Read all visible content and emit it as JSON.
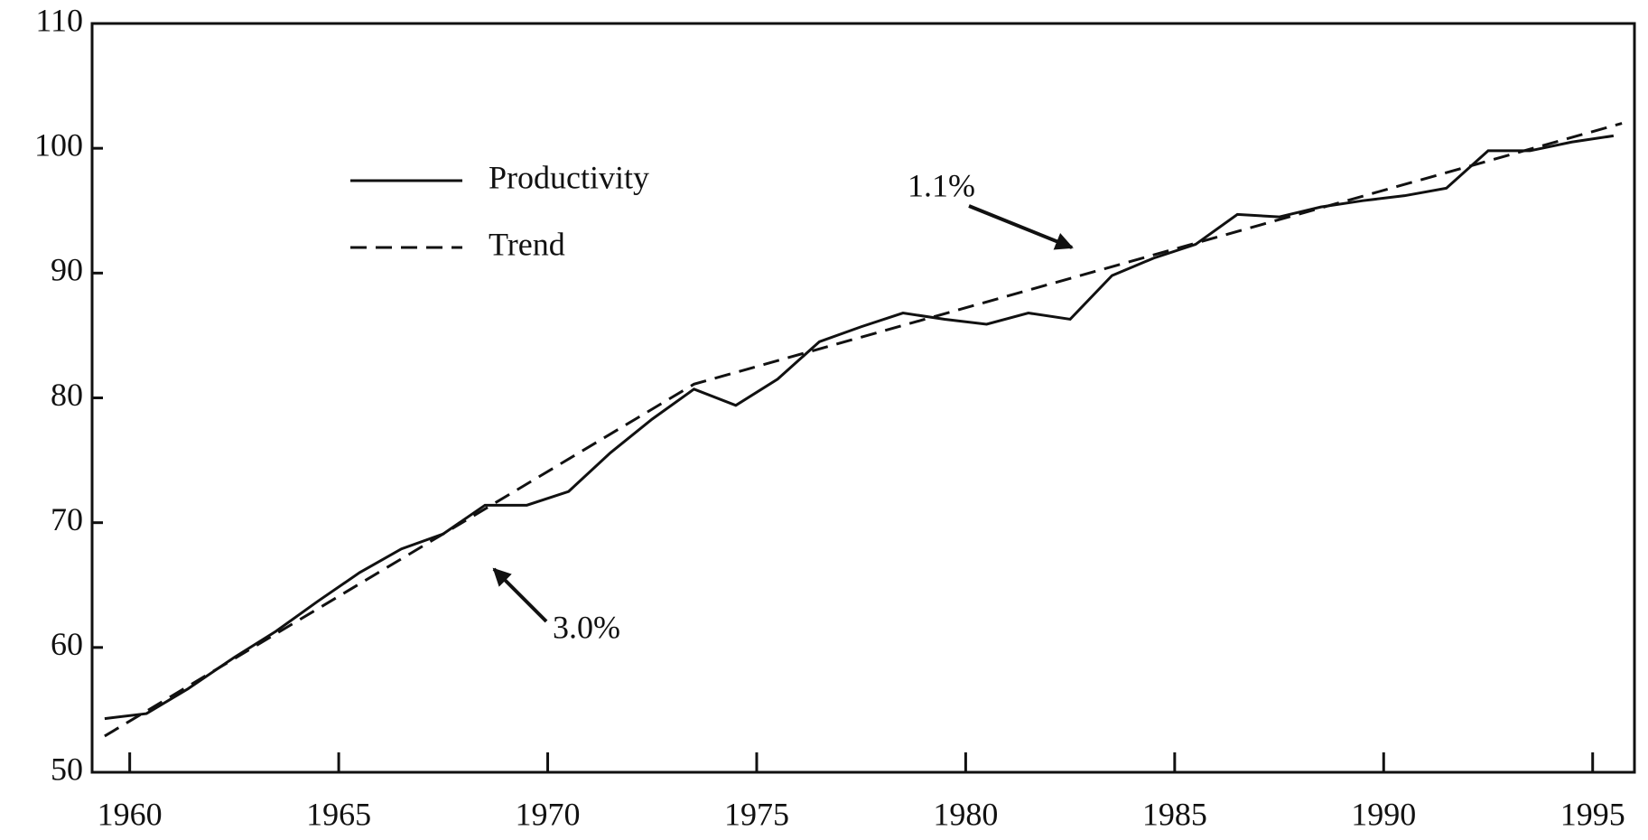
{
  "chart_data": {
    "type": "line",
    "x": [
      1959.4,
      1960.4,
      1961.4,
      1962.5,
      1963.5,
      1964.5,
      1965.5,
      1966.5,
      1967.5,
      1968.5,
      1969.5,
      1970.5,
      1971.5,
      1972.5,
      1973.5,
      1974.5,
      1975.5,
      1976.5,
      1977.5,
      1978.5,
      1979.5,
      1980.5,
      1981.5,
      1982.5,
      1983.5,
      1984.5,
      1985.5,
      1986.5,
      1987.5,
      1988.5,
      1989.5,
      1990.5,
      1991.5,
      1992.5,
      1993.5,
      1994.5,
      1995.5
    ],
    "series": [
      {
        "name": "Productivity",
        "color": "#111111",
        "dash": "solid",
        "values": [
          54.3,
          54.7,
          56.7,
          59.2,
          61.3,
          63.7,
          66.0,
          67.9,
          69.1,
          71.4,
          71.4,
          72.5,
          75.6,
          78.3,
          80.7,
          79.4,
          81.5,
          84.5,
          85.7,
          86.8,
          86.3,
          85.9,
          86.8,
          86.3,
          89.8,
          91.2,
          92.3,
          94.7,
          94.5,
          95.3,
          95.8,
          96.2,
          96.8,
          99.8,
          99.8,
          100.5,
          101.0
        ]
      },
      {
        "name": "Trend",
        "color": "#111111",
        "dash": "dashed",
        "x": [
          1959.4,
          1973.5,
          1995.7
        ],
        "values": [
          52.9,
          81.1,
          102.0
        ]
      }
    ],
    "annotations": [
      {
        "text": "1.1%"
      },
      {
        "text": "3.0%"
      }
    ],
    "xlim": [
      1959.1,
      1996
    ],
    "xticks": [
      1960,
      1965,
      1970,
      1975,
      1980,
      1985,
      1990,
      1995
    ],
    "ylim": [
      50,
      110
    ],
    "yticks": [
      50,
      60,
      70,
      80,
      90,
      100,
      110
    ],
    "grid": false,
    "legend": "upper left"
  }
}
